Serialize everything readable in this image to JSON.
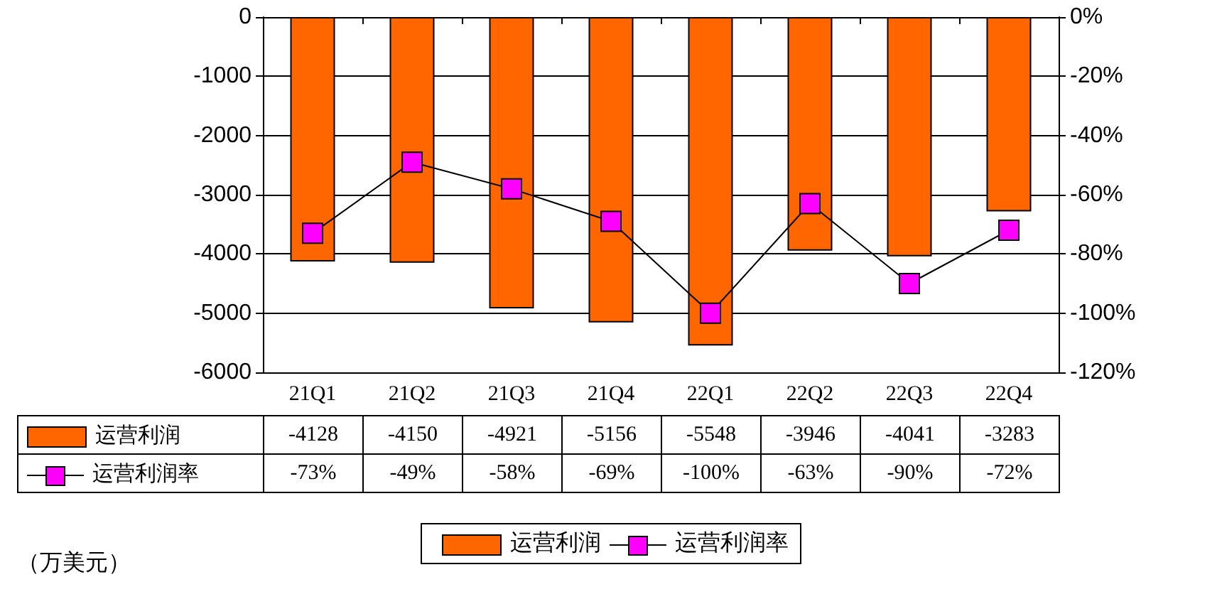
{
  "chart_data": {
    "type": "bar",
    "categories": [
      "21Q1",
      "21Q2",
      "21Q3",
      "21Q4",
      "22Q1",
      "22Q2",
      "22Q3",
      "22Q4"
    ],
    "series": [
      {
        "name": "运营利润",
        "color": "#ff6600",
        "values": [
          -4128,
          -4150,
          -4921,
          -5156,
          -5548,
          -3946,
          -4041,
          -3283
        ],
        "value_labels": [
          "-4128",
          "-4150",
          "-4921",
          "-5156",
          "-5548",
          "-3946",
          "-4041",
          "-3283"
        ]
      },
      {
        "name": "运营利润率",
        "type": "line",
        "axis": "y2",
        "color": "#ff00ff",
        "marker": "square",
        "line_style": "solid",
        "values": [
          -73,
          -49,
          -58,
          -69,
          -100,
          -63,
          -90,
          -72
        ],
        "value_labels": [
          "-73%",
          "-49%",
          "-58%",
          "-69%",
          "-100%",
          "-63%",
          "-90%",
          "-72%"
        ]
      }
    ],
    "ylim": [
      -6000,
      0
    ],
    "yticks": [
      -6000,
      -5000,
      -4000,
      -3000,
      -2000,
      -1000,
      0
    ],
    "y2lim": [
      -120,
      0
    ],
    "y2ticks": [
      {
        "value": -120,
        "label": "-120%"
      },
      {
        "value": -100,
        "label": "-100%"
      },
      {
        "value": -80,
        "label": "-80%"
      },
      {
        "value": -60,
        "label": "-60%"
      },
      {
        "value": -40,
        "label": "-40%"
      },
      {
        "value": -20,
        "label": "-20%"
      },
      {
        "value": 0,
        "label": "0%"
      }
    ],
    "grid": "y",
    "legend": "bottom",
    "annotations": [
      "（万美元）"
    ]
  }
}
